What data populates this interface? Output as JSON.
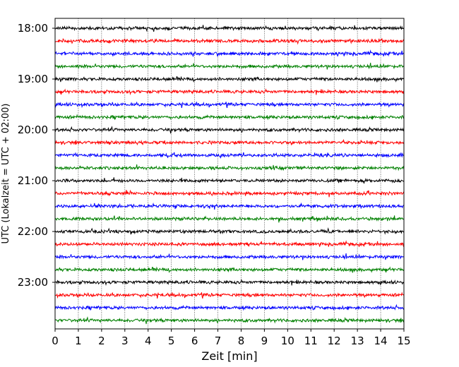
{
  "chart_data": {
    "type": "line",
    "title": "",
    "xlabel": "Zeit  [min]",
    "ylabel": "UTC (Lokalzeit = UTC + 02:00)",
    "xlim": [
      0,
      15
    ],
    "x_ticks": [
      0,
      1,
      2,
      3,
      4,
      5,
      6,
      7,
      8,
      9,
      10,
      11,
      12,
      13,
      14,
      15
    ],
    "x_tick_labels": [
      "0",
      "1",
      "2",
      "3",
      "4",
      "5",
      "6",
      "7",
      "8",
      "9",
      "10",
      "11",
      "12",
      "13",
      "14",
      "15"
    ],
    "y_tick_labels": [
      "18:00",
      "19:00",
      "20:00",
      "21:00",
      "22:00",
      "23:00"
    ],
    "trace_interval_minutes": 15,
    "traces_per_hour": 4,
    "start_time": "18:00",
    "end_time": "23:45",
    "vertical_grid": true,
    "grid_style": "dotted",
    "trace_colors": [
      "#000000",
      "#ff0000",
      "#0000ff",
      "#008000"
    ],
    "series": [
      {
        "start": "18:00",
        "color": "#000000"
      },
      {
        "start": "18:15",
        "color": "#ff0000"
      },
      {
        "start": "18:30",
        "color": "#0000ff"
      },
      {
        "start": "18:45",
        "color": "#008000"
      },
      {
        "start": "19:00",
        "color": "#000000"
      },
      {
        "start": "19:15",
        "color": "#ff0000"
      },
      {
        "start": "19:30",
        "color": "#0000ff"
      },
      {
        "start": "19:45",
        "color": "#008000"
      },
      {
        "start": "20:00",
        "color": "#000000"
      },
      {
        "start": "20:15",
        "color": "#ff0000"
      },
      {
        "start": "20:30",
        "color": "#0000ff"
      },
      {
        "start": "20:45",
        "color": "#008000"
      },
      {
        "start": "21:00",
        "color": "#000000"
      },
      {
        "start": "21:15",
        "color": "#ff0000"
      },
      {
        "start": "21:30",
        "color": "#0000ff"
      },
      {
        "start": "21:45",
        "color": "#008000"
      },
      {
        "start": "22:00",
        "color": "#000000"
      },
      {
        "start": "22:15",
        "color": "#ff0000"
      },
      {
        "start": "22:30",
        "color": "#0000ff"
      },
      {
        "start": "22:45",
        "color": "#008000"
      },
      {
        "start": "23:00",
        "color": "#000000"
      },
      {
        "start": "23:15",
        "color": "#ff0000"
      },
      {
        "start": "23:30",
        "color": "#0000ff"
      },
      {
        "start": "23:45",
        "color": "#008000"
      }
    ]
  }
}
